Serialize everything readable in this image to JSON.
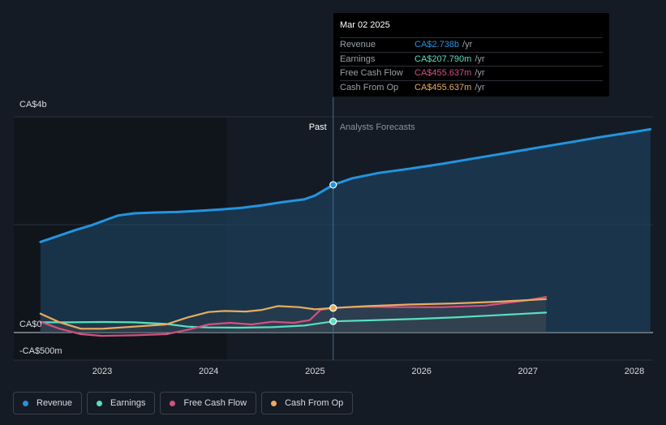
{
  "chart_data": {
    "type": "line",
    "title": "",
    "y_axis_labels": [
      "CA$4b",
      "CA$0",
      "-CA$500m"
    ],
    "x_tick_labels": [
      "2023",
      "2024",
      "2025",
      "2026",
      "2027",
      "2028"
    ],
    "x_ticks": [
      2023,
      2024,
      2025,
      2026,
      2027,
      2028
    ],
    "xlim": [
      2022.4,
      2028.15
    ],
    "ylim": [
      -500,
      4000
    ],
    "gridlines": [
      -500,
      0,
      2000,
      4000
    ],
    "past_label": "Past",
    "forecast_label": "Analysts Forecasts",
    "divider_x": 2025.17,
    "shade_start_x": 2024.17,
    "series": [
      {
        "name": "Revenue",
        "color": "#2394df",
        "area": true,
        "x": [
          2022.42,
          2022.6,
          2022.75,
          2022.9,
          2023.05,
          2023.15,
          2023.3,
          2023.5,
          2023.7,
          2023.9,
          2024.1,
          2024.3,
          2024.5,
          2024.7,
          2024.9,
          2025.0,
          2025.17,
          2025.35,
          2025.6,
          2025.9,
          2026.2,
          2026.5,
          2026.8,
          2027.1,
          2027.4,
          2027.7,
          2028.0,
          2028.15
        ],
        "values": [
          1680,
          1800,
          1900,
          1990,
          2100,
          2170,
          2210,
          2225,
          2235,
          2255,
          2280,
          2310,
          2360,
          2420,
          2470,
          2540,
          2738,
          2860,
          2960,
          3040,
          3130,
          3230,
          3330,
          3430,
          3530,
          3630,
          3720,
          3770
        ]
      },
      {
        "name": "Earnings",
        "color": "#58e0c0",
        "area": false,
        "x": [
          2022.42,
          2022.7,
          2023.0,
          2023.3,
          2023.6,
          2023.8,
          2024.0,
          2024.3,
          2024.6,
          2024.9,
          2025.17,
          2025.5,
          2025.9,
          2026.3,
          2026.7,
          2027.17
        ],
        "values": [
          190,
          190,
          195,
          190,
          160,
          110,
          95,
          90,
          100,
          130,
          207.79,
          225,
          250,
          280,
          320,
          370
        ]
      },
      {
        "name": "Free Cash Flow",
        "color": "#d3517f",
        "area": false,
        "x": [
          2022.42,
          2022.6,
          2022.8,
          2023.0,
          2023.3,
          2023.6,
          2023.8,
          2024.0,
          2024.2,
          2024.4,
          2024.6,
          2024.8,
          2024.95,
          2025.05,
          2025.17,
          2025.4,
          2025.8,
          2026.2,
          2026.6,
          2027.0,
          2027.17
        ],
        "values": [
          200,
          70,
          -30,
          -60,
          -50,
          -30,
          50,
          150,
          180,
          150,
          200,
          180,
          230,
          420,
          455.637,
          480,
          470,
          470,
          500,
          600,
          660
        ]
      },
      {
        "name": "Cash From Op",
        "color": "#e8ac5f",
        "area": false,
        "x": [
          2022.42,
          2022.6,
          2022.8,
          2023.0,
          2023.3,
          2023.6,
          2023.8,
          2024.0,
          2024.15,
          2024.35,
          2024.5,
          2024.65,
          2024.85,
          2025.0,
          2025.17,
          2025.5,
          2025.9,
          2026.3,
          2026.7,
          2027.17
        ],
        "values": [
          350,
          190,
          70,
          70,
          110,
          150,
          280,
          380,
          400,
          390,
          420,
          490,
          470,
          430,
          455.637,
          490,
          520,
          540,
          570,
          620
        ]
      }
    ],
    "highlight_x": 2025.17
  },
  "tooltip": {
    "date": "Mar 02 2025",
    "rows": [
      {
        "label": "Revenue",
        "value": "CA$2.738b",
        "unit": "/yr",
        "color": "#2394df"
      },
      {
        "label": "Earnings",
        "value": "CA$207.790m",
        "unit": "/yr",
        "color": "#58e0c0"
      },
      {
        "label": "Free Cash Flow",
        "value": "CA$455.637m",
        "unit": "/yr",
        "color": "#d3517f"
      },
      {
        "label": "Cash From Op",
        "value": "CA$455.637m",
        "unit": "/yr",
        "color": "#e8ac5f"
      }
    ]
  },
  "legend": [
    {
      "label": "Revenue",
      "color": "#2394df"
    },
    {
      "label": "Earnings",
      "color": "#58e0c0"
    },
    {
      "label": "Free Cash Flow",
      "color": "#d3517f"
    },
    {
      "label": "Cash From Op",
      "color": "#e8ac5f"
    }
  ]
}
